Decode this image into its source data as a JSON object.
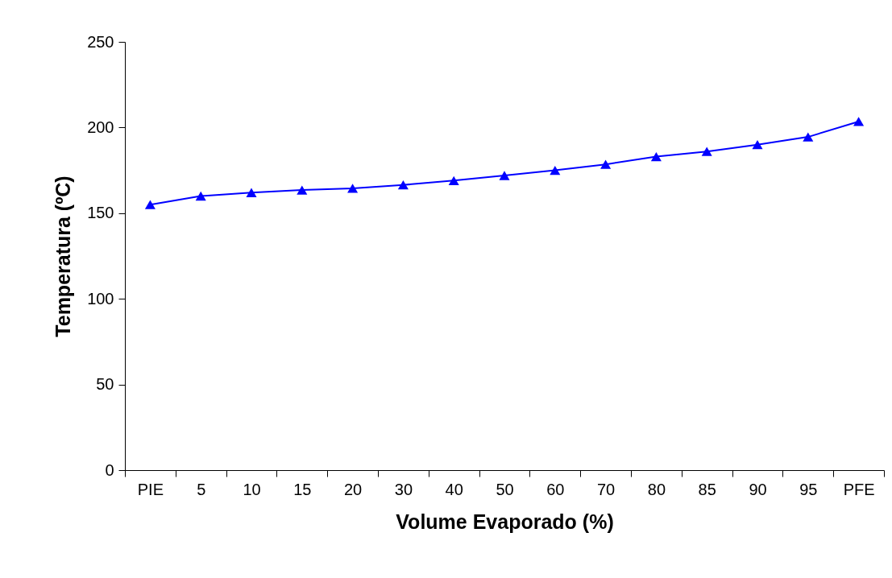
{
  "chart_data": {
    "type": "line",
    "xlabel": "Volume Evaporado (%)",
    "ylabel": "Temperatura (ºC)",
    "categories": [
      "PIE",
      "5",
      "10",
      "15",
      "20",
      "30",
      "40",
      "50",
      "60",
      "70",
      "80",
      "85",
      "90",
      "95",
      "PFE"
    ],
    "series": [
      {
        "color": "#0000ff",
        "values": [
          155,
          160,
          162,
          163.5,
          164.5,
          166.5,
          169,
          172,
          175,
          178.5,
          183,
          186,
          190,
          194.5,
          203.5
        ]
      }
    ],
    "ylim": [
      0,
      250
    ],
    "yticks": [
      0,
      50,
      100,
      150,
      200,
      250
    ],
    "grid": false,
    "legend": false,
    "marker": "triangle",
    "line_style": "solid"
  }
}
